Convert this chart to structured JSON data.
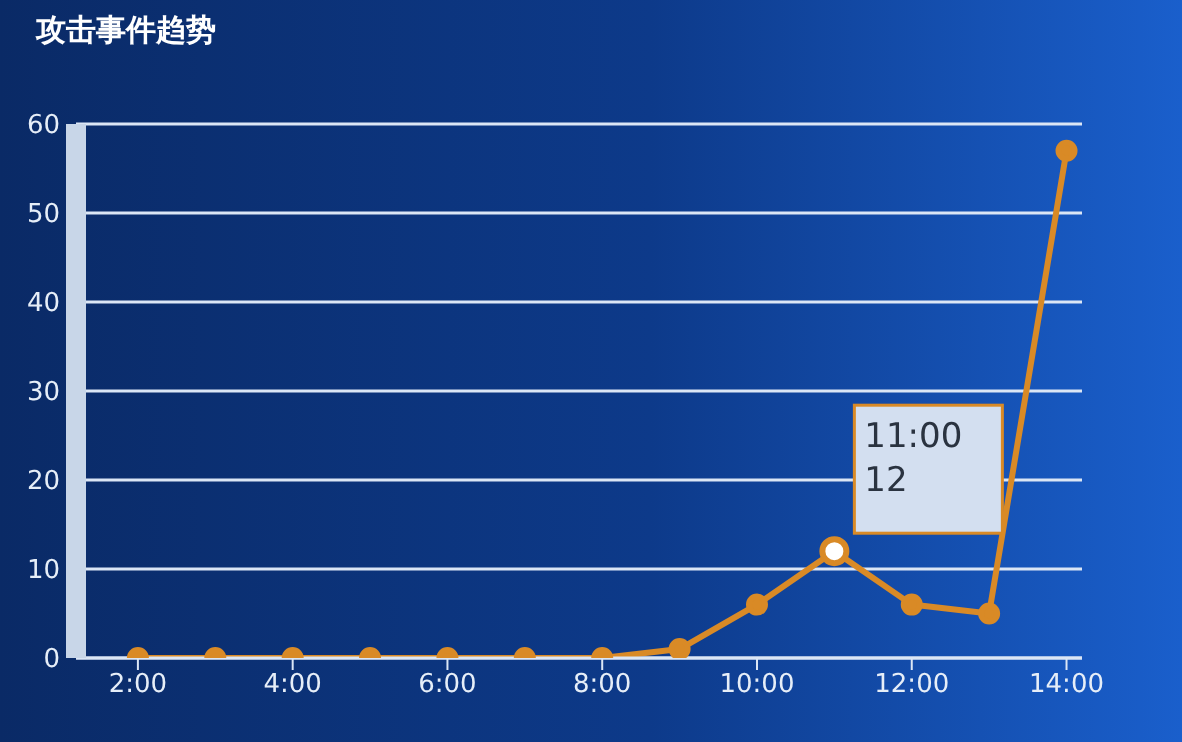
{
  "chart_data": {
    "type": "line",
    "title": "攻击事件趋势",
    "x": [
      2,
      3,
      4,
      5,
      6,
      7,
      8,
      9,
      10,
      11,
      12,
      13,
      14
    ],
    "series": [
      {
        "color": "#d98a26",
        "values": [
          0,
          0,
          0,
          0,
          0,
          0,
          0,
          1,
          6,
          12,
          6,
          5,
          57
        ]
      }
    ],
    "xlim": [
      1.2,
      14.2
    ],
    "xticks": [
      {
        "value": 2,
        "label": "2:00"
      },
      {
        "value": 4,
        "label": "4:00"
      },
      {
        "value": 6,
        "label": "6:00"
      },
      {
        "value": 8,
        "label": "8:00"
      },
      {
        "value": 10,
        "label": "10:00"
      },
      {
        "value": 12,
        "label": "12:00"
      },
      {
        "value": 14,
        "label": "14:00"
      }
    ],
    "ylim": [
      0,
      60
    ],
    "yticks": [
      0,
      10,
      20,
      30,
      40,
      50,
      60
    ],
    "grid": "y",
    "marker": "circle",
    "line_style": "solid",
    "legend": false,
    "annotations": [
      {
        "text": "11:00\n12",
        "x": 11,
        "y": 12
      }
    ]
  }
}
